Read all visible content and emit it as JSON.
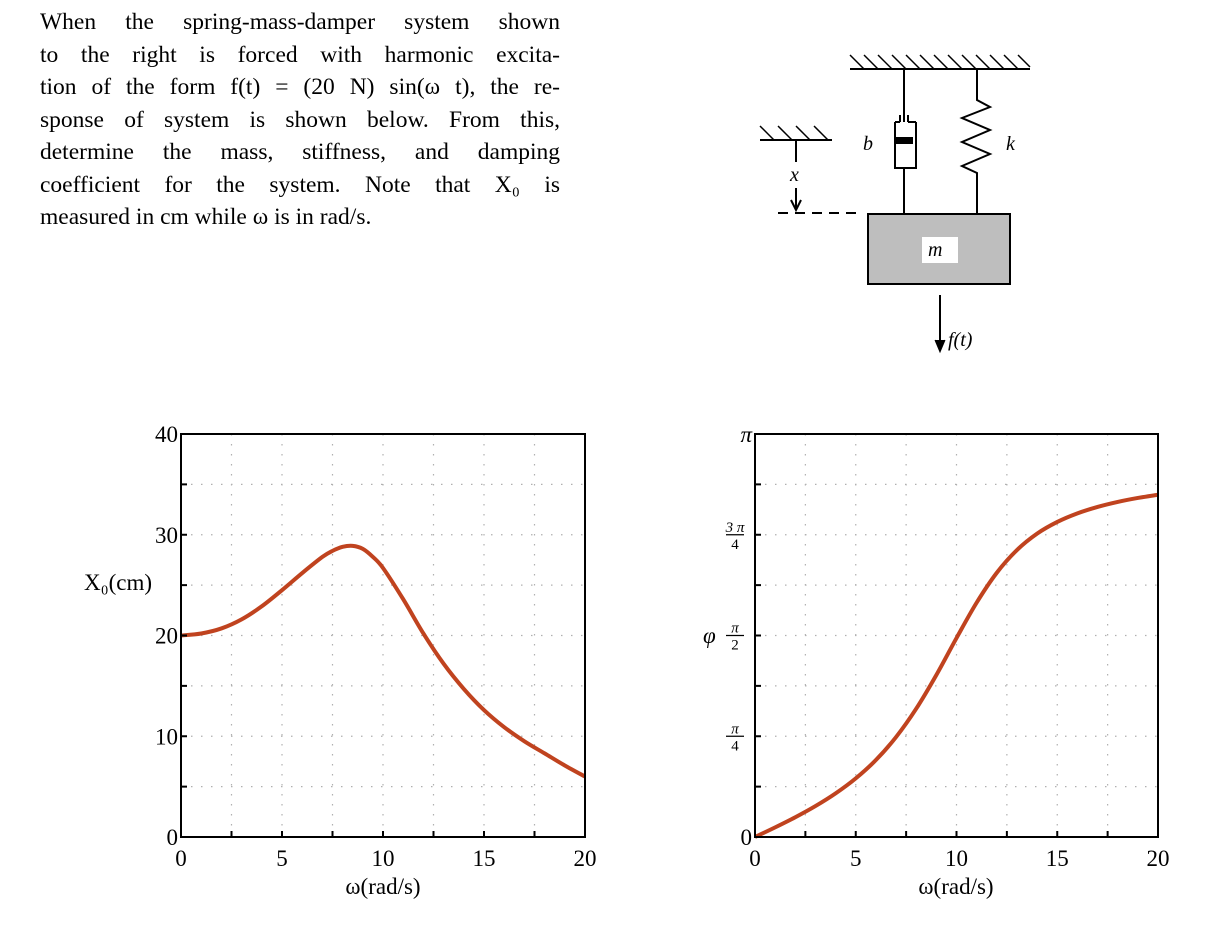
{
  "problem": {
    "text": "When the spring-mass-damper system shown to the right is forced with harmonic excitation of the form f(t) = (20 N) sin(ω t), the response of system is shown below. From this, determine the mass, stiffness, and damping coefficient for the system. Note that X₀ is measured in cm while ω is in rad/s.",
    "lines": [
      "When the spring-mass-damper system shown",
      "to the right is forced with harmonic excita-",
      "tion of the form f(t) = (20 N) sin(ω t), the re-",
      "sponse of system is shown below. From this,",
      "determine the mass, stiffness, and damping",
      "coefficient for the system.  Note that X₀ is",
      "measured in cm while ω is in rad/s."
    ]
  },
  "diagram": {
    "damper_label": "b",
    "spring_label": "k",
    "displacement_label": "x",
    "mass_label": "m",
    "force_label": "f(t)",
    "mass_fill": "#bebebe"
  },
  "style": {
    "curve_color": "#c0431f",
    "grid_color": "#b0b0b0",
    "axis_color": "#000000"
  },
  "chart_data": [
    {
      "type": "line",
      "title": "",
      "xlabel": "ω(rad/s)",
      "ylabel": "X₀(cm)",
      "xlim": [
        0,
        20
      ],
      "ylim": [
        0,
        40
      ],
      "xticks": [
        0,
        5,
        10,
        15,
        20
      ],
      "xtick_labels": [
        "0",
        "5",
        "10",
        "15",
        "20"
      ],
      "yticks": [
        0,
        10,
        20,
        30,
        40
      ],
      "ytick_labels": [
        "0",
        "10",
        "20",
        "30",
        "40"
      ],
      "grid": true,
      "grid_x_step": 2.5,
      "grid_y_step": 5,
      "series": [
        {
          "name": "X₀",
          "x": [
            0,
            1,
            2,
            3,
            4,
            5,
            6,
            7,
            7.5,
            8,
            8.5,
            9,
            9.5,
            10,
            11,
            12,
            13,
            14,
            15,
            16,
            17,
            18,
            19,
            20
          ],
          "values": [
            20.0,
            20.2,
            20.7,
            21.6,
            22.9,
            24.5,
            26.2,
            27.8,
            28.4,
            28.8,
            28.9,
            28.6,
            27.8,
            26.7,
            23.6,
            20.2,
            17.2,
            14.7,
            12.6,
            10.9,
            9.5,
            8.3,
            7.1,
            6.0
          ]
        }
      ]
    },
    {
      "type": "line",
      "title": "",
      "xlabel": "ω(rad/s)",
      "ylabel": "φ",
      "xlim": [
        0,
        20
      ],
      "ylim": [
        0,
        3.1416
      ],
      "xticks": [
        0,
        5,
        10,
        15,
        20
      ],
      "xtick_labels": [
        "0",
        "5",
        "10",
        "15",
        "20"
      ],
      "yticks": [
        0,
        0.7854,
        1.5708,
        2.3562,
        3.1416
      ],
      "ytick_labels": [
        "0",
        "π/4",
        "π/2",
        "3π/4",
        "π"
      ],
      "grid": true,
      "grid_x_step": 2.5,
      "grid_y_step": 0.3927,
      "series": [
        {
          "name": "φ",
          "x": [
            0,
            1,
            2,
            3,
            4,
            5,
            6,
            7,
            8,
            9,
            10,
            11,
            12,
            13,
            14,
            15,
            16,
            17,
            18,
            19,
            20
          ],
          "values": [
            0.0,
            0.075,
            0.154,
            0.241,
            0.34,
            0.457,
            0.6,
            0.779,
            1.0,
            1.263,
            1.551,
            1.827,
            2.06,
            2.237,
            2.365,
            2.456,
            2.523,
            2.573,
            2.612,
            2.643,
            2.668
          ]
        }
      ]
    }
  ]
}
